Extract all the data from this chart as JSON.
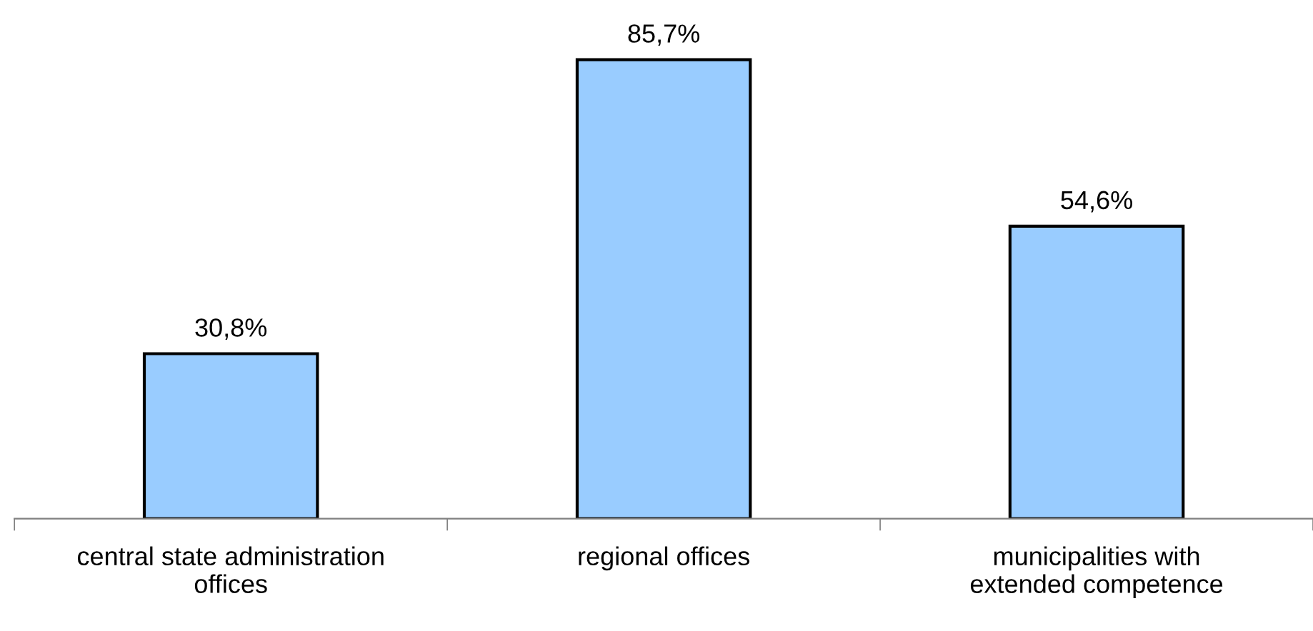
{
  "chart_data": {
    "type": "bar",
    "categories": [
      "central state administration\noffices",
      "regional offices",
      "municipalities with\nextended competence"
    ],
    "values": [
      30.8,
      85.7,
      54.6
    ],
    "value_labels": [
      "30,8%",
      "85,7%",
      "54,6%"
    ],
    "color": "#99ccff",
    "grid": false,
    "legend": false
  }
}
